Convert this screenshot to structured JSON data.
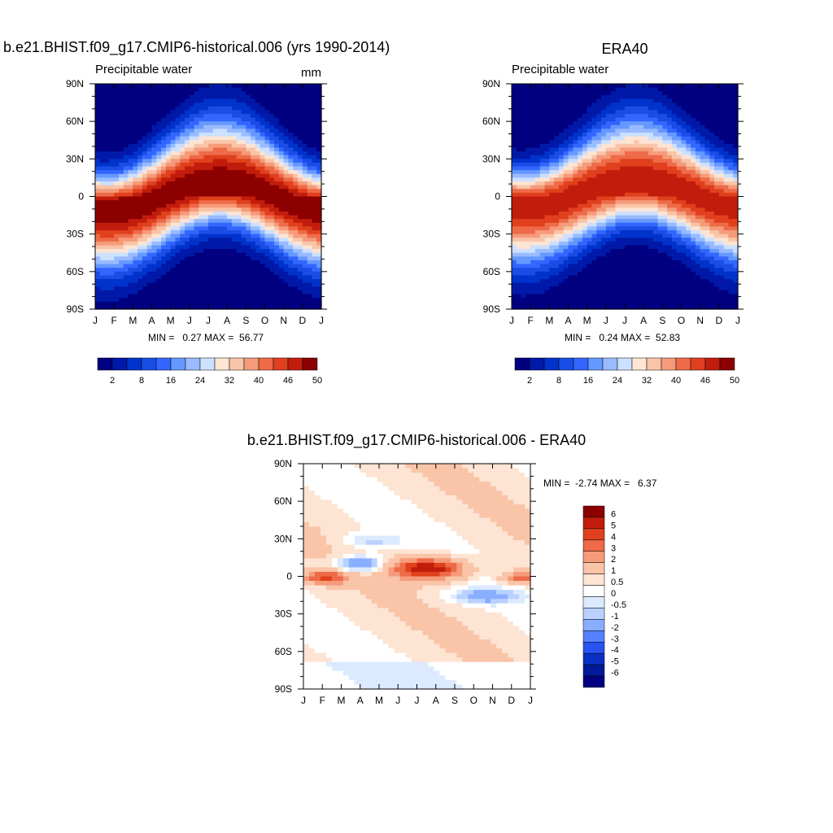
{
  "chart_data": [
    {
      "type": "heatmap",
      "title": "b.e21.BHIST.f09_g17.CMIP6-historical.006 (yrs 1990-2014)",
      "left_label": "Precipitable water",
      "right_label": "mm",
      "stats": "MIN =   0.27 MAX =  56.77",
      "x_ticks": [
        "J",
        "F",
        "M",
        "A",
        "M",
        "J",
        "J",
        "A",
        "S",
        "O",
        "N",
        "D",
        "J"
      ],
      "y_ticks": [
        "90N",
        "60N",
        "30N",
        "0",
        "30S",
        "60S",
        "90S"
      ],
      "ylim": [
        -90,
        90
      ],
      "colorbar_labels": [
        "2",
        "8",
        "16",
        "24",
        "32",
        "40",
        "46",
        "50"
      ],
      "colorbar_colors": [
        "#000080",
        "#0019a8",
        "#0033cc",
        "#1a4de6",
        "#3366ff",
        "#6699ff",
        "#99bbff",
        "#cce0ff",
        "#fde4d3",
        "#f9c4a8",
        "#f59b7a",
        "#ee6a48",
        "#e0401d",
        "#c21d0c",
        "#8c0000"
      ],
      "colors": {
        "high": "#8b0000",
        "low": "#00007f"
      }
    },
    {
      "type": "heatmap",
      "title": "ERA40",
      "left_label": "Precipitable water",
      "right_label": "",
      "stats": "MIN =   0.24 MAX =  52.83",
      "x_ticks": [
        "J",
        "F",
        "M",
        "A",
        "M",
        "J",
        "J",
        "A",
        "S",
        "O",
        "N",
        "D",
        "J"
      ],
      "y_ticks": [
        "90N",
        "60N",
        "30N",
        "0",
        "30S",
        "60S",
        "90S"
      ],
      "ylim": [
        -90,
        90
      ],
      "colorbar_labels": [
        "2",
        "8",
        "16",
        "24",
        "32",
        "40",
        "46",
        "50"
      ],
      "colorbar_colors": [
        "#000080",
        "#0019a8",
        "#0033cc",
        "#1a4de6",
        "#3366ff",
        "#6699ff",
        "#99bbff",
        "#cce0ff",
        "#fde4d3",
        "#f9c4a8",
        "#f59b7a",
        "#ee6a48",
        "#e0401d",
        "#c21d0c",
        "#8c0000"
      ]
    },
    {
      "type": "heatmap",
      "title": "b.e21.BHIST.f09_g17.CMIP6-historical.006 - ERA40",
      "stats": "MIN =  -2.74 MAX =   6.37",
      "x_ticks": [
        "J",
        "F",
        "M",
        "A",
        "M",
        "J",
        "J",
        "A",
        "S",
        "O",
        "N",
        "D",
        "J"
      ],
      "y_ticks": [
        "90N",
        "60N",
        "30N",
        "0",
        "30S",
        "60S",
        "90S"
      ],
      "ylim": [
        -90,
        90
      ],
      "colorbar_labels": [
        "6",
        "5",
        "4",
        "3",
        "2",
        "1",
        "0.5",
        "0",
        "-0.5",
        "-1",
        "-2",
        "-3",
        "-4",
        "-5",
        "-6"
      ],
      "colorbar_colors": [
        "#8c0000",
        "#c21d0c",
        "#e0401d",
        "#ee6a48",
        "#f59b7a",
        "#f9c4a8",
        "#fde4d3",
        "#ffffff",
        "#dbeaff",
        "#b8d1ff",
        "#8aaeff",
        "#5580ff",
        "#2952f0",
        "#0a2fc4",
        "#001a99",
        "#000080"
      ]
    }
  ]
}
